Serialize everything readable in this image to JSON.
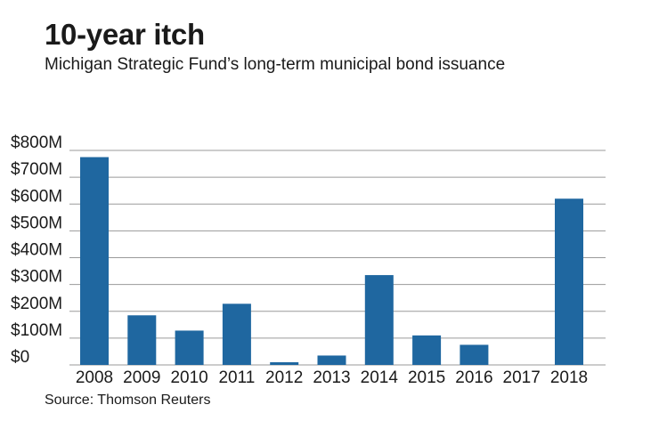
{
  "chart_data": {
    "type": "bar",
    "title": "10-year itch",
    "subtitle": "Michigan Strategic Fund’s long-term municipal bond issuance",
    "source": "Source: Thomson Reuters",
    "categories": [
      "2008",
      "2009",
      "2010",
      "2011",
      "2012",
      "2013",
      "2014",
      "2015",
      "2016",
      "2017",
      "2018"
    ],
    "values": [
      775,
      185,
      128,
      228,
      10,
      35,
      335,
      110,
      75,
      0,
      620
    ],
    "unit": "$M",
    "yticks": [
      0,
      100,
      200,
      300,
      400,
      500,
      600,
      700,
      800
    ],
    "ytick_labels": [
      "$0",
      "$100M",
      "$200M",
      "$300M",
      "$400M",
      "$500M",
      "$600M",
      "$700M",
      "$800M"
    ],
    "ylim": [
      0,
      800
    ],
    "grid": true,
    "bar_color": "#1f67a0",
    "grid_color": "#9a9a9a"
  }
}
